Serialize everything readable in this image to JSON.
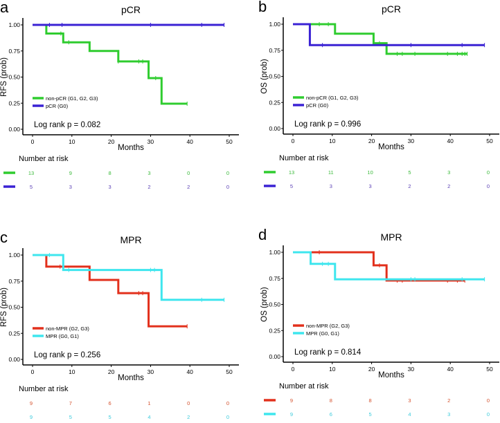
{
  "chart_data": [
    {
      "type": "line",
      "subtype": "kaplan-meier",
      "panel_label": "a",
      "title": "pCR",
      "xlabel": "Months",
      "ylabel": "RFS (prob)",
      "xlim": [
        0,
        50
      ],
      "ylim": [
        0,
        1
      ],
      "grid": false,
      "legend_placement": "bottom-left",
      "x_ticks": [
        "0",
        "10",
        "20",
        "30",
        "40",
        "50"
      ],
      "y_ticks": [
        "0.00",
        "0.25",
        "0.50",
        "0.75",
        "1.00"
      ],
      "annotation": "Log rank p = 0.082",
      "risk_title": "Number at risk",
      "series": [
        {
          "name": "non-pCR (G1, G2, G3)",
          "color": "#2fcc2f",
          "text_color": "#3aba3a",
          "steps": [
            [
              0,
              1.0
            ],
            [
              3.5,
              0.917
            ],
            [
              7.8,
              0.833
            ],
            [
              14.5,
              0.75
            ],
            [
              21.8,
              0.65
            ],
            [
              29.5,
              0.49
            ],
            [
              32.8,
              0.245
            ],
            [
              39.3,
              0.245
            ]
          ],
          "censored": [
            7.2,
            9.2,
            21.8,
            27,
            28,
            31.3,
            39.3
          ],
          "at_risk": [
            "13",
            "9",
            "8",
            "3",
            "0",
            "0"
          ]
        },
        {
          "name": "pCR (G0)",
          "color": "#3a22d4",
          "text_color": "#5a3fb5",
          "steps": [
            [
              0,
              1.0
            ],
            [
              48.7,
              1.0
            ]
          ],
          "censored": [
            4.3,
            7.5,
            30,
            43,
            48.7
          ],
          "at_risk": [
            "5",
            "3",
            "3",
            "2",
            "2",
            "0"
          ]
        }
      ]
    },
    {
      "type": "line",
      "subtype": "kaplan-meier",
      "panel_label": "b",
      "title": "pCR",
      "xlabel": "Months",
      "ylabel": "OS (prob)",
      "xlim": [
        0,
        50
      ],
      "ylim": [
        0,
        1
      ],
      "grid": false,
      "legend_placement": "bottom-left",
      "x_ticks": [
        "0",
        "10",
        "20",
        "30",
        "40",
        "50"
      ],
      "y_ticks": [
        "0.00",
        "0.25",
        "0.50",
        "0.75",
        "1.00"
      ],
      "annotation": "Log rank p = 0.996",
      "risk_title": "Number at risk",
      "series": [
        {
          "name": "non-pCR (G1, G2, G3)",
          "color": "#2fcc2f",
          "text_color": "#3aba3a",
          "steps": [
            [
              0,
              1.0
            ],
            [
              10.7,
              0.909
            ],
            [
              20.5,
              0.818
            ],
            [
              23.8,
              0.716
            ],
            [
              44.3,
              0.716
            ]
          ],
          "censored": [
            6.7,
            9,
            22,
            26.5,
            27.8,
            31,
            39.3,
            41.8,
            43,
            43.7,
            44.3
          ],
          "at_risk": [
            "13",
            "11",
            "10",
            "5",
            "3",
            "0"
          ]
        },
        {
          "name": "pCR (G0)",
          "color": "#3a22d4",
          "text_color": "#5a3fb5",
          "steps": [
            [
              0,
              1.0
            ],
            [
              4.3,
              0.8
            ],
            [
              48.7,
              0.8
            ]
          ],
          "censored": [
            7.5,
            30,
            43,
            48.7
          ],
          "at_risk": [
            "5",
            "3",
            "3",
            "2",
            "2",
            "0"
          ]
        }
      ]
    },
    {
      "type": "line",
      "subtype": "kaplan-meier",
      "panel_label": "c",
      "title": "MPR",
      "xlabel": "Months",
      "ylabel": "RFS (prob)",
      "xlim": [
        0,
        50
      ],
      "ylim": [
        0,
        1
      ],
      "grid": false,
      "legend_placement": "bottom-left",
      "x_ticks": [
        "0",
        "10",
        "20",
        "30",
        "40",
        "50"
      ],
      "y_ticks": [
        "0.00",
        "0.25",
        "0.50",
        "0.75",
        "1.00"
      ],
      "annotation": "Log rank p = 0.256",
      "risk_title": "Number at risk",
      "series": [
        {
          "name": "non-MPR (G2, G3)",
          "color": "#e2301c",
          "text_color": "#d4502c",
          "steps": [
            [
              0,
              1.0
            ],
            [
              3.5,
              0.889
            ],
            [
              14.5,
              0.762
            ],
            [
              21.8,
              0.635
            ],
            [
              29.5,
              0.317
            ],
            [
              39.3,
              0.317
            ]
          ],
          "censored": [
            7,
            27,
            28,
            39.3
          ],
          "at_risk": [
            "9",
            "7",
            "6",
            "1",
            "0",
            "0"
          ]
        },
        {
          "name": "MPR (G0, G1)",
          "color": "#3ee6ee",
          "text_color": "#3ccbdc",
          "steps": [
            [
              0,
              1.0
            ],
            [
              7.8,
              0.857
            ],
            [
              32.8,
              0.571
            ],
            [
              48.7,
              0.571
            ]
          ],
          "censored": [
            4.3,
            9.2,
            30,
            31,
            43,
            48.7
          ],
          "at_risk": [
            "9",
            "5",
            "5",
            "4",
            "2",
            "0"
          ]
        }
      ]
    },
    {
      "type": "line",
      "subtype": "kaplan-meier",
      "panel_label": "d",
      "title": "MPR",
      "xlabel": "Months",
      "ylabel": "OS (prob)",
      "xlim": [
        0,
        50
      ],
      "ylim": [
        0,
        1
      ],
      "grid": false,
      "legend_placement": "bottom-left",
      "x_ticks": [
        "0",
        "10",
        "20",
        "30",
        "40",
        "50"
      ],
      "y_ticks": [
        "0.00",
        "0.25",
        "0.50",
        "0.75",
        "1.00"
      ],
      "annotation": "Log rank p = 0.814",
      "risk_title": "Number at risk",
      "series": [
        {
          "name": "non-MPR (G2, G3)",
          "color": "#e2301c",
          "text_color": "#d4502c",
          "steps": [
            [
              0,
              1.0
            ],
            [
              20.5,
              0.875
            ],
            [
              23.8,
              0.729
            ],
            [
              43.7,
              0.729
            ]
          ],
          "censored": [
            6.7,
            22,
            26.5,
            27.8,
            39.3,
            41.8,
            43.7
          ],
          "at_risk": [
            "9",
            "8",
            "8",
            "3",
            "2",
            "0"
          ]
        },
        {
          "name": "MPR (G0, G1)",
          "color": "#3ee6ee",
          "text_color": "#3ccbdc",
          "steps": [
            [
              0,
              1.0
            ],
            [
              4.5,
              0.889
            ],
            [
              10.7,
              0.741
            ],
            [
              48.7,
              0.741
            ]
          ],
          "censored": [
            7.5,
            9,
            30,
            31,
            43,
            48.7
          ],
          "at_risk": [
            "9",
            "6",
            "5",
            "4",
            "3",
            "0"
          ]
        }
      ]
    }
  ]
}
